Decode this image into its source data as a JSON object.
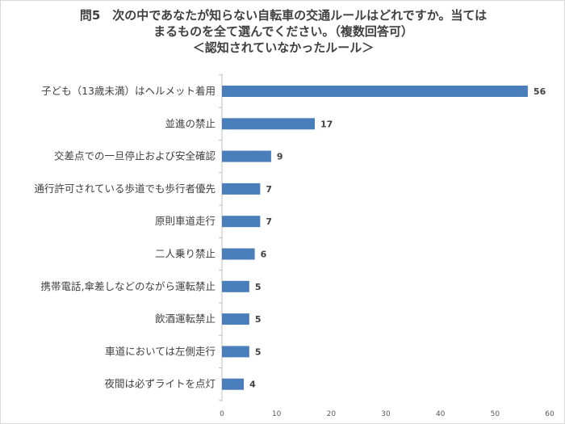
{
  "title": {
    "line1": "問5　次の中であなたが知らない自転車の交通ルールはどれですか。当ては",
    "line2": "まるものを全て選んでください。（複数回答可）",
    "line3": "＜認知されていなかったルール＞"
  },
  "chart_data": {
    "type": "bar",
    "orientation": "horizontal",
    "categories": [
      "子ども（13歳未満）はヘルメット着用",
      "並進の禁止",
      "交差点での一旦停止および安全確認",
      "通行許可されている歩道でも歩行者優先",
      "原則車道走行",
      "二人乗り禁止",
      "携帯電話,傘差しなどのながら運転禁止",
      "飲酒運転禁止",
      "車道においては左側走行",
      "夜間は必ずライトを点灯"
    ],
    "values": [
      56,
      17,
      9,
      7,
      7,
      6,
      5,
      5,
      5,
      4
    ],
    "xlim": [
      0,
      60
    ],
    "xticks": [
      0,
      10,
      20,
      30,
      40,
      50,
      60
    ],
    "data_labels": true,
    "grid": false,
    "bar_color": "#4a7ebb"
  }
}
